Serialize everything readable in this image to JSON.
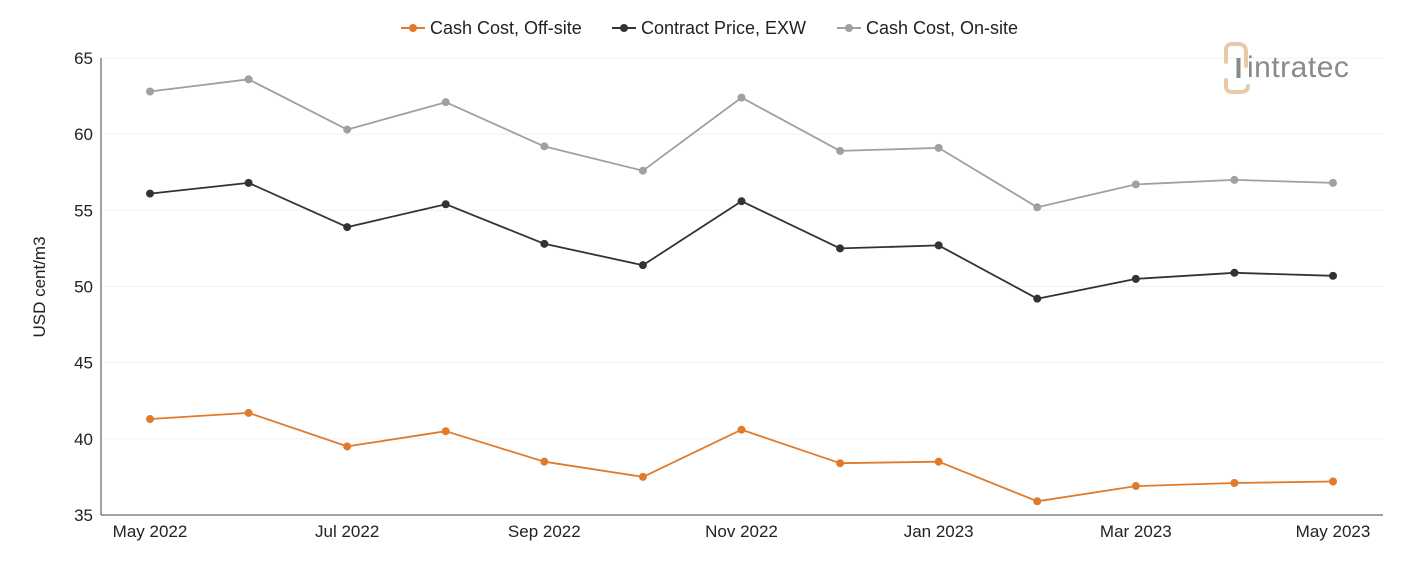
{
  "chart_data": {
    "type": "line",
    "title": "",
    "xlabel": "",
    "ylabel": "USD cent/m3",
    "ylim": [
      35,
      65
    ],
    "yticks": [
      35,
      40,
      45,
      50,
      55,
      60,
      65
    ],
    "categories": [
      "May 2022",
      "Jun 2022",
      "Jul 2022",
      "Aug 2022",
      "Sep 2022",
      "Oct 2022",
      "Nov 2022",
      "Dec 2022",
      "Jan 2023",
      "Feb 2023",
      "Mar 2023",
      "Apr 2023",
      "May 2023"
    ],
    "shown_tick_labels": [
      "May 2022",
      "Jul 2022",
      "Sep 2022",
      "Nov 2022",
      "Jan 2023",
      "Mar 2023",
      "May 2023"
    ],
    "grid": "horizontal",
    "legend_position": "top",
    "series": [
      {
        "name": "Cash Cost, Off-site",
        "color": "#e07b2e",
        "values": [
          41.3,
          41.7,
          39.5,
          40.5,
          38.5,
          37.5,
          40.6,
          38.4,
          38.5,
          35.9,
          36.9,
          37.1,
          37.2
        ]
      },
      {
        "name": "Contract Price, EXW",
        "color": "#333333",
        "values": [
          56.1,
          56.8,
          53.9,
          55.4,
          52.8,
          51.4,
          55.6,
          52.5,
          52.7,
          49.2,
          50.5,
          50.9,
          50.7
        ]
      },
      {
        "name": "Cash Cost, On-site",
        "color": "#a0a0a0",
        "values": [
          62.8,
          63.6,
          60.3,
          62.1,
          59.2,
          57.6,
          62.4,
          58.9,
          59.1,
          55.2,
          56.7,
          57.0,
          56.8
        ]
      }
    ]
  },
  "logo": {
    "text": "intratec",
    "mark_color": "#e8c9a8",
    "text_color": "#8a8a8a"
  }
}
